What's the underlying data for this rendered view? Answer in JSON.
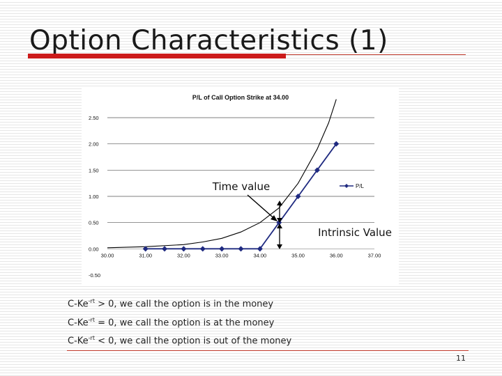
{
  "slide": {
    "title": "Option Characteristics (1)",
    "page_number": "11"
  },
  "bullets": [
    {
      "lead": "C-Ke",
      "sup": "-rt",
      "tail": " > 0, we call the option is in the money"
    },
    {
      "lead": "C-Ke",
      "sup": "-rt",
      "tail": " = 0, we call the option is at the money"
    },
    {
      "lead": "C-Ke",
      "sup": "-rt",
      "tail": " < 0, we call the option is out of the money"
    }
  ],
  "annotations": {
    "time_value": "Time value",
    "intrinsic_value": "Intrinsic Value"
  },
  "chart_data": {
    "type": "line",
    "title": "P/L of Call Option Strike at 34.00",
    "xlabel": "",
    "ylabel": "",
    "x_ticks": [
      "30.00",
      "31.00",
      "32.00",
      "33.00",
      "34.00",
      "35.00",
      "36.00",
      "37.00"
    ],
    "y_ticks": [
      "2.50",
      "2.00",
      "1.50",
      "1.00",
      "0.50",
      "0.00",
      "-0.50"
    ],
    "xlim": [
      30,
      37
    ],
    "ylim": [
      -0.5,
      2.5
    ],
    "grid": "horizontal",
    "legend_position": "right",
    "series": [
      {
        "name": "P/L",
        "color": "#1f2a80",
        "marker": "diamond",
        "x": [
          31.0,
          31.5,
          32.0,
          32.5,
          33.0,
          33.5,
          34.0,
          34.5,
          35.0,
          35.5,
          36.0
        ],
        "y": [
          0.0,
          0.0,
          0.0,
          0.0,
          0.0,
          0.0,
          0.0,
          0.5,
          1.0,
          1.5,
          2.0
        ]
      }
    ],
    "option_value_curve": {
      "color": "#000000",
      "x": [
        30.0,
        31.0,
        32.0,
        32.5,
        33.0,
        33.5,
        34.0,
        34.5,
        35.0,
        35.5,
        35.8,
        36.0
      ],
      "y": [
        0.02,
        0.04,
        0.08,
        0.13,
        0.2,
        0.32,
        0.5,
        0.78,
        1.25,
        1.9,
        2.4,
        2.85
      ]
    }
  }
}
